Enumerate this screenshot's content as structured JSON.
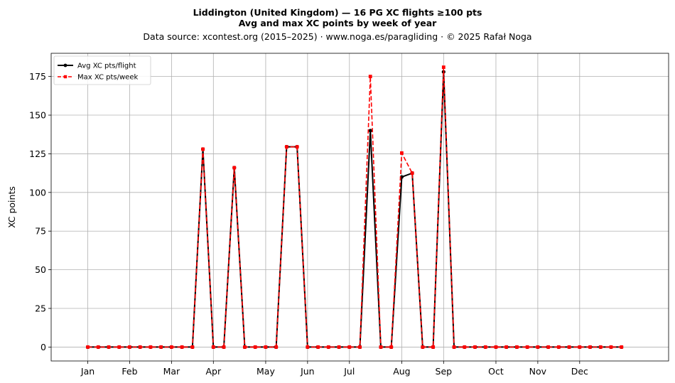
{
  "chart_data": {
    "type": "line",
    "title": "Liddington (United Kingdom)  —  16 PG XC flights ≥100 pts",
    "subtitle": "Avg and max XC points by week of year",
    "source": "Data source: xcontest.org (2015–2025)  ·  www.noga.es/paragliding  ·  © 2025 Rafał Noga",
    "ylabel": "XC points",
    "xlabel": "",
    "xlim": [
      -2.5,
      56.5
    ],
    "ylim": [
      -9,
      190
    ],
    "yticks": [
      0,
      25,
      50,
      75,
      100,
      125,
      150,
      175
    ],
    "xticks": [
      {
        "label": "Jan",
        "x": 1
      },
      {
        "label": "Feb",
        "x": 5
      },
      {
        "label": "Mar",
        "x": 9
      },
      {
        "label": "Apr",
        "x": 13
      },
      {
        "label": "May",
        "x": 18
      },
      {
        "label": "Jun",
        "x": 22
      },
      {
        "label": "Jul",
        "x": 26
      },
      {
        "label": "Aug",
        "x": 31
      },
      {
        "label": "Sep",
        "x": 35
      },
      {
        "label": "Oct",
        "x": 40
      },
      {
        "label": "Nov",
        "x": 44
      },
      {
        "label": "Dec",
        "x": 48
      }
    ],
    "grid": true,
    "legend_position": "top-left",
    "series": [
      {
        "name": "Avg XC pts/flight",
        "color": "#000000",
        "linestyle": "solid",
        "marker": "circle",
        "points": [
          [
            1,
            0
          ],
          [
            2,
            0
          ],
          [
            3,
            0
          ],
          [
            4,
            0
          ],
          [
            5,
            0
          ],
          [
            6,
            0
          ],
          [
            7,
            0
          ],
          [
            8,
            0
          ],
          [
            9,
            0
          ],
          [
            10,
            0
          ],
          [
            11,
            0
          ],
          [
            12,
            128
          ],
          [
            13,
            0
          ],
          [
            14,
            0
          ],
          [
            15,
            116
          ],
          [
            16,
            0
          ],
          [
            17,
            0
          ],
          [
            18,
            0
          ],
          [
            19,
            0
          ],
          [
            20,
            129.5
          ],
          [
            21,
            129.5
          ],
          [
            22,
            0
          ],
          [
            23,
            0
          ],
          [
            24,
            0
          ],
          [
            25,
            0
          ],
          [
            26,
            0
          ],
          [
            27,
            0
          ],
          [
            28,
            140
          ],
          [
            29,
            0
          ],
          [
            30,
            0
          ],
          [
            31,
            110
          ],
          [
            32,
            112.5
          ],
          [
            33,
            0
          ],
          [
            34,
            0
          ],
          [
            35,
            178
          ],
          [
            36,
            0
          ],
          [
            37,
            0
          ],
          [
            38,
            0
          ],
          [
            39,
            0
          ],
          [
            40,
            0
          ],
          [
            41,
            0
          ],
          [
            42,
            0
          ],
          [
            43,
            0
          ],
          [
            44,
            0
          ],
          [
            45,
            0
          ],
          [
            46,
            0
          ],
          [
            47,
            0
          ],
          [
            48,
            0
          ],
          [
            49,
            0
          ],
          [
            50,
            0
          ],
          [
            51,
            0
          ],
          [
            52,
            0
          ]
        ]
      },
      {
        "name": "Max XC pts/week",
        "color": "#ff0000",
        "linestyle": "dashed",
        "marker": "square",
        "points": [
          [
            1,
            0
          ],
          [
            2,
            0
          ],
          [
            3,
            0
          ],
          [
            4,
            0
          ],
          [
            5,
            0
          ],
          [
            6,
            0
          ],
          [
            7,
            0
          ],
          [
            8,
            0
          ],
          [
            9,
            0
          ],
          [
            10,
            0
          ],
          [
            11,
            0
          ],
          [
            12,
            128
          ],
          [
            13,
            0
          ],
          [
            14,
            0
          ],
          [
            15,
            116
          ],
          [
            16,
            0
          ],
          [
            17,
            0
          ],
          [
            18,
            0
          ],
          [
            19,
            0
          ],
          [
            20,
            129.5
          ],
          [
            21,
            129.5
          ],
          [
            22,
            0
          ],
          [
            23,
            0
          ],
          [
            24,
            0
          ],
          [
            25,
            0
          ],
          [
            26,
            0
          ],
          [
            27,
            0
          ],
          [
            28,
            175
          ],
          [
            29,
            0
          ],
          [
            30,
            0
          ],
          [
            31,
            125.5
          ],
          [
            32,
            112.5
          ],
          [
            33,
            0
          ],
          [
            34,
            0
          ],
          [
            35,
            181
          ],
          [
            36,
            0
          ],
          [
            37,
            0
          ],
          [
            38,
            0
          ],
          [
            39,
            0
          ],
          [
            40,
            0
          ],
          [
            41,
            0
          ],
          [
            42,
            0
          ],
          [
            43,
            0
          ],
          [
            44,
            0
          ],
          [
            45,
            0
          ],
          [
            46,
            0
          ],
          [
            47,
            0
          ],
          [
            48,
            0
          ],
          [
            49,
            0
          ],
          [
            50,
            0
          ],
          [
            51,
            0
          ],
          [
            52,
            0
          ]
        ]
      }
    ]
  }
}
